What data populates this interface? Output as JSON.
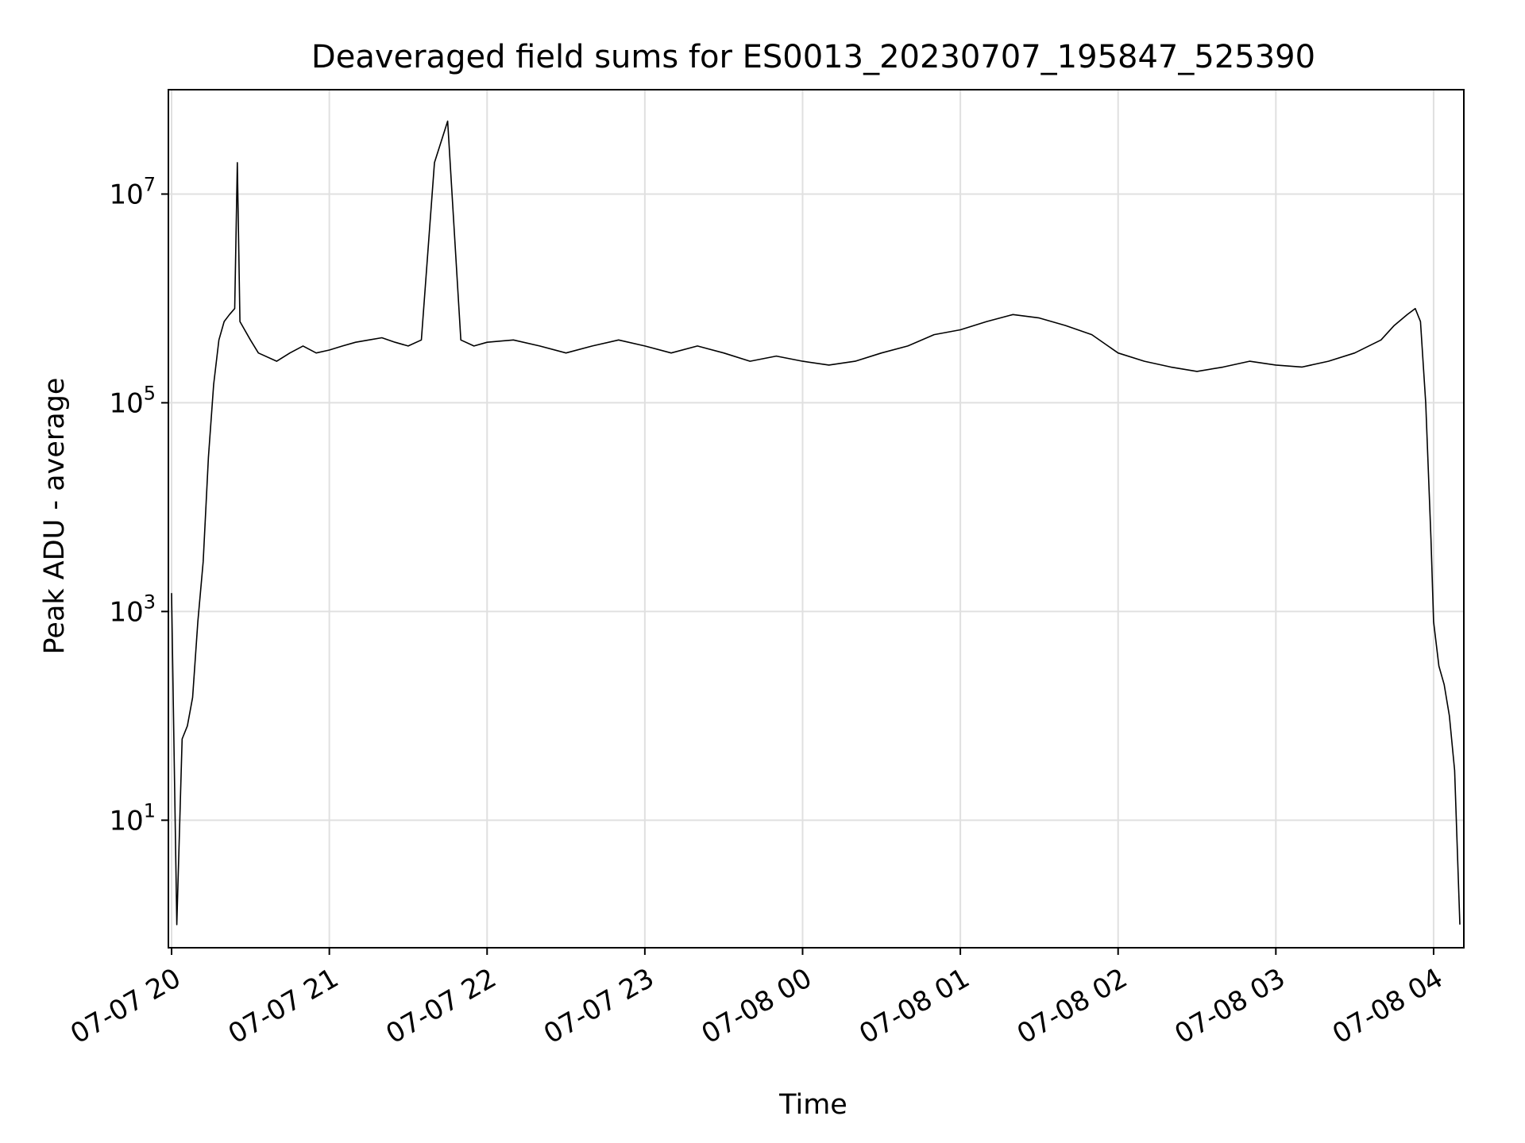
{
  "chart_data": {
    "type": "line",
    "title": "Deaveraged field sums for ES0013_20230707_195847_525390",
    "xlabel": "Time",
    "ylabel": "Peak ADU - average",
    "yscale": "log",
    "grid": true,
    "legend": "none",
    "line_color": "#000000",
    "grid_color": "#e0e0e0",
    "x_ticks": [
      "07-07 20",
      "07-07 21",
      "07-07 22",
      "07-07 23",
      "07-08 00",
      "07-08 01",
      "07-08 02",
      "07-08 03",
      "07-08 04"
    ],
    "y_ticks": [
      {
        "base": "10",
        "exp": "1",
        "value": 10
      },
      {
        "base": "10",
        "exp": "3",
        "value": 1000
      },
      {
        "base": "10",
        "exp": "5",
        "value": 100000
      },
      {
        "base": "10",
        "exp": "7",
        "value": 10000000
      }
    ],
    "xlim": [
      "2023-07-07 19:58:47",
      "2023-07-08 04:11:30"
    ],
    "ylim": [
      0.6,
      100000000
    ],
    "series": [
      {
        "x": [
          "2023-07-07 20:00",
          "2023-07-07 20:02",
          "2023-07-07 20:04",
          "2023-07-07 20:06",
          "2023-07-07 20:08",
          "2023-07-07 20:10",
          "2023-07-07 20:12",
          "2023-07-07 20:14",
          "2023-07-07 20:16",
          "2023-07-07 20:18",
          "2023-07-07 20:20",
          "2023-07-07 20:22",
          "2023-07-07 20:24",
          "2023-07-07 20:25",
          "2023-07-07 20:26",
          "2023-07-07 20:30",
          "2023-07-07 20:33",
          "2023-07-07 20:40",
          "2023-07-07 20:45",
          "2023-07-07 20:50",
          "2023-07-07 20:55",
          "2023-07-07 21:00",
          "2023-07-07 21:05",
          "2023-07-07 21:10",
          "2023-07-07 21:15",
          "2023-07-07 21:20",
          "2023-07-07 21:25",
          "2023-07-07 21:30",
          "2023-07-07 21:35",
          "2023-07-07 21:40",
          "2023-07-07 21:45",
          "2023-07-07 21:50",
          "2023-07-07 21:55",
          "2023-07-07 22:00",
          "2023-07-07 22:10",
          "2023-07-07 22:20",
          "2023-07-07 22:30",
          "2023-07-07 22:40",
          "2023-07-07 22:50",
          "2023-07-07 23:00",
          "2023-07-07 23:10",
          "2023-07-07 23:20",
          "2023-07-07 23:30",
          "2023-07-07 23:40",
          "2023-07-07 23:50",
          "2023-07-08 00:00",
          "2023-07-08 00:10",
          "2023-07-08 00:20",
          "2023-07-08 00:30",
          "2023-07-08 00:40",
          "2023-07-08 00:50",
          "2023-07-08 01:00",
          "2023-07-08 01:10",
          "2023-07-08 01:20",
          "2023-07-08 01:30",
          "2023-07-08 01:40",
          "2023-07-08 01:50",
          "2023-07-08 02:00",
          "2023-07-08 02:10",
          "2023-07-08 02:20",
          "2023-07-08 02:30",
          "2023-07-08 02:40",
          "2023-07-08 02:50",
          "2023-07-08 03:00",
          "2023-07-08 03:10",
          "2023-07-08 03:20",
          "2023-07-08 03:30",
          "2023-07-08 03:40",
          "2023-07-08 03:45",
          "2023-07-08 03:50",
          "2023-07-08 03:53",
          "2023-07-08 03:55",
          "2023-07-08 03:57",
          "2023-07-08 03:59",
          "2023-07-08 04:00",
          "2023-07-08 04:02",
          "2023-07-08 04:04",
          "2023-07-08 04:06",
          "2023-07-08 04:08",
          "2023-07-08 04:10"
        ],
        "y": [
          1500,
          1,
          60,
          80,
          150,
          800,
          3000,
          30000,
          150000,
          400000,
          600000,
          700000,
          800000,
          20000000,
          600000,
          400000,
          300000,
          250000,
          300000,
          350000,
          300000,
          320000,
          350000,
          380000,
          400000,
          420000,
          380000,
          350000,
          400000,
          20000000,
          50000000,
          400000,
          350000,
          380000,
          400000,
          350000,
          300000,
          350000,
          400000,
          350000,
          300000,
          350000,
          300000,
          250000,
          280000,
          250000,
          230000,
          250000,
          300000,
          350000,
          450000,
          500000,
          600000,
          700000,
          650000,
          550000,
          450000,
          300000,
          250000,
          220000,
          200000,
          220000,
          250000,
          230000,
          220000,
          250000,
          300000,
          400000,
          550000,
          700000,
          800000,
          600000,
          100000,
          5000,
          800,
          300,
          200,
          100,
          30,
          1
        ]
      }
    ]
  }
}
